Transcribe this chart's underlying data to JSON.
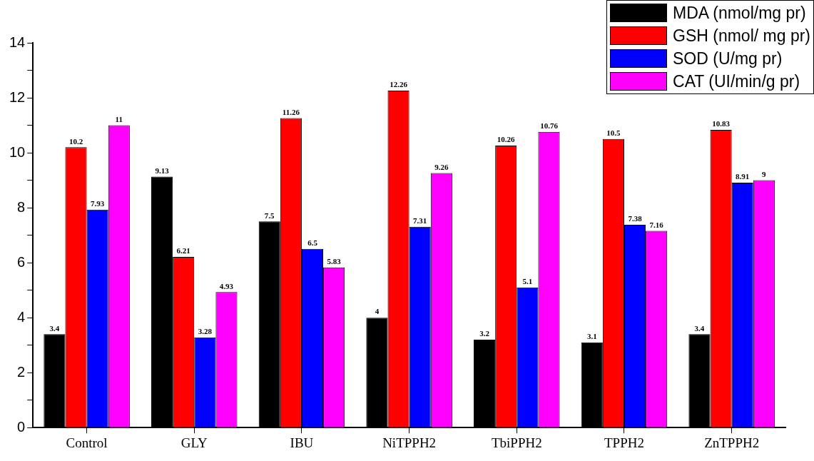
{
  "chart_data": {
    "type": "bar",
    "categories": [
      "Control",
      "GLY",
      "IBU",
      "NiTPPH2",
      "TbiPPH2",
      "TPPH2",
      "ZnTPPH2"
    ],
    "series": [
      {
        "name": "MDA (nmol/mg pr)",
        "color": "#000000",
        "values": [
          3.4,
          9.13,
          7.5,
          4,
          3.2,
          3.1,
          3.4
        ]
      },
      {
        "name": "GSH (nmol/ mg pr)",
        "color": "#ff0000",
        "values": [
          10.2,
          6.21,
          11.26,
          12.26,
          10.26,
          10.5,
          10.83
        ]
      },
      {
        "name": "SOD (U/mg pr)",
        "color": "#0000ff",
        "values": [
          7.93,
          3.28,
          6.5,
          7.31,
          5.1,
          7.38,
          8.91
        ]
      },
      {
        "name": "CAT (UI/min/g pr)",
        "color": "#ff00ff",
        "values": [
          11,
          4.93,
          5.83,
          9.26,
          10.76,
          7.16,
          9
        ]
      }
    ],
    "ylim": [
      0,
      14
    ],
    "yticks": [
      0,
      {
        "value": 1,
        "label": null
      },
      2,
      {
        "value": 3,
        "label": null
      },
      4,
      {
        "value": 5,
        "label": null
      },
      6,
      {
        "value": 7,
        "label": null
      },
      8,
      {
        "value": 9,
        "label": null
      },
      10,
      {
        "value": 11,
        "label": null
      },
      12,
      {
        "value": 13,
        "label": null
      },
      14
    ],
    "grid": false,
    "legend": "top right",
    "data_labels": true
  }
}
